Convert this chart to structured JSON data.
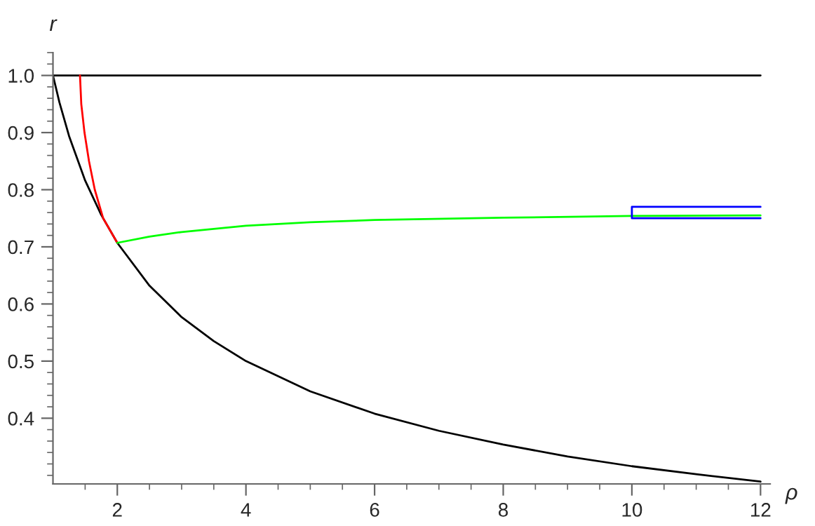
{
  "chart_data": {
    "type": "line",
    "xlabel": "ρ",
    "ylabel": "r",
    "xlim": [
      1,
      12.15
    ],
    "ylim": [
      0.285,
      1.04
    ],
    "xticks": [
      {
        "value": 1.5,
        "label": null
      },
      2,
      {
        "value": 2.5,
        "label": null
      },
      {
        "value": 3,
        "label": null
      },
      {
        "value": 3.5,
        "label": null
      },
      4,
      {
        "value": 4.5,
        "label": null
      },
      {
        "value": 5,
        "label": null
      },
      {
        "value": 5.5,
        "label": null
      },
      6,
      {
        "value": 6.5,
        "label": null
      },
      {
        "value": 7,
        "label": null
      },
      {
        "value": 7.5,
        "label": null
      },
      8,
      {
        "value": 8.5,
        "label": null
      },
      {
        "value": 9,
        "label": null
      },
      {
        "value": 9.5,
        "label": null
      },
      10,
      {
        "value": 10.5,
        "label": null
      },
      {
        "value": 11,
        "label": null
      },
      {
        "value": 11.5,
        "label": null
      },
      12
    ],
    "yticks": [
      {
        "value": 0.3,
        "label": null
      },
      {
        "value": 0.32,
        "label": null
      },
      {
        "value": 0.34,
        "label": null
      },
      {
        "value": 0.36,
        "label": null
      },
      {
        "value": 0.38,
        "label": null
      },
      0.4,
      {
        "value": 0.42,
        "label": null
      },
      {
        "value": 0.44,
        "label": null
      },
      {
        "value": 0.46,
        "label": null
      },
      {
        "value": 0.48,
        "label": null
      },
      0.5,
      {
        "value": 0.52,
        "label": null
      },
      {
        "value": 0.54,
        "label": null
      },
      {
        "value": 0.56,
        "label": null
      },
      {
        "value": 0.58,
        "label": null
      },
      0.6,
      {
        "value": 0.62,
        "label": null
      },
      {
        "value": 0.64,
        "label": null
      },
      {
        "value": 0.66,
        "label": null
      },
      {
        "value": 0.68,
        "label": null
      },
      0.7,
      {
        "value": 0.72,
        "label": null
      },
      {
        "value": 0.74,
        "label": null
      },
      {
        "value": 0.76,
        "label": null
      },
      {
        "value": 0.78,
        "label": null
      },
      0.8,
      {
        "value": 0.82,
        "label": null
      },
      {
        "value": 0.84,
        "label": null
      },
      {
        "value": 0.86,
        "label": null
      },
      {
        "value": 0.88,
        "label": null
      },
      0.9,
      {
        "value": 0.92,
        "label": null
      },
      {
        "value": 0.94,
        "label": null
      },
      {
        "value": 0.96,
        "label": null
      },
      {
        "value": 0.98,
        "label": null
      },
      {
        "value": 1,
        "label": "1.0"
      },
      {
        "value": 1.02,
        "label": null
      },
      {
        "value": 1.04,
        "label": null
      }
    ],
    "grid": false,
    "marker": "none",
    "line_style": "solid",
    "series": [
      {
        "color": "#000000",
        "x": [
          1,
          12
        ],
        "values": [
          1.0,
          1.0
        ]
      },
      {
        "color": "#000000",
        "x": [
          1,
          1.1,
          1.25,
          1.5,
          1.75,
          2,
          2.5,
          3,
          3.5,
          4,
          5,
          6,
          7,
          8,
          9,
          10,
          11,
          12
        ],
        "values": [
          1.0,
          0.953,
          0.894,
          0.816,
          0.756,
          0.707,
          0.632,
          0.577,
          0.535,
          0.5,
          0.447,
          0.408,
          0.378,
          0.354,
          0.333,
          0.316,
          0.302,
          0.289
        ]
      },
      {
        "color": "#ff0000",
        "x": [
          1.42,
          1.44,
          1.49,
          1.56,
          1.65,
          1.78,
          2
        ],
        "values": [
          1.0,
          0.95,
          0.9,
          0.85,
          0.8,
          0.75,
          0.707
        ]
      },
      {
        "color": "#00ff00",
        "x": [
          2,
          2.5,
          3,
          4,
          5,
          6,
          8,
          10,
          12
        ],
        "values": [
          0.707,
          0.718,
          0.726,
          0.737,
          0.743,
          0.747,
          0.751,
          0.754,
          0.755
        ]
      },
      {
        "color": "#0000ff",
        "x": [
          12,
          10,
          10,
          12
        ],
        "values": [
          0.77,
          0.77,
          0.75,
          0.75
        ]
      }
    ]
  }
}
